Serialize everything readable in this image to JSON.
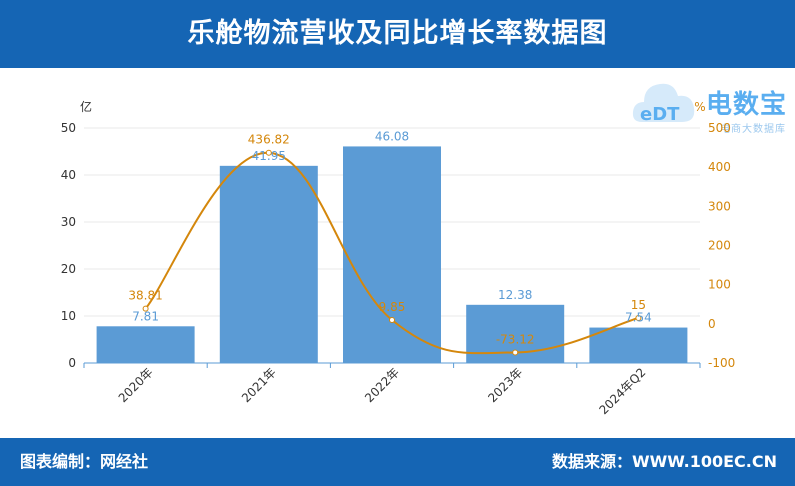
{
  "header": {
    "title": "乐舱物流营收及同比增长率数据图"
  },
  "footer": {
    "left": "图表编制：网经社",
    "right": "数据来源：WWW.100EC.CN"
  },
  "logo": {
    "text": "电数宝",
    "sub": "电商大数据库",
    "mark_text": "eDT"
  },
  "colors": {
    "bar": "#5b9bd5",
    "line": "#d4870c",
    "header_bg": "#1565b4"
  },
  "chart_data": {
    "type": "bar",
    "categories": [
      "2020年",
      "2021年",
      "2022年",
      "2023年",
      "2024年Q2"
    ],
    "y_left": {
      "unit": "亿",
      "ticks": [
        0,
        10,
        20,
        30,
        40,
        50
      ],
      "ylim": [
        0,
        50
      ]
    },
    "y_right": {
      "unit": "%",
      "ticks": [
        -100,
        0,
        100,
        200,
        300,
        400,
        500
      ],
      "ylim": [
        -100,
        500
      ]
    },
    "series": [
      {
        "type": "bar",
        "axis": "left",
        "values": [
          7.81,
          41.95,
          46.08,
          12.38,
          7.54
        ],
        "labels": [
          "7.81",
          "41.95",
          "46.08",
          "12.38",
          "7.54"
        ]
      },
      {
        "type": "line",
        "axis": "right",
        "values": [
          38.81,
          436.82,
          9.85,
          -73.12,
          15
        ],
        "labels": [
          "38.81",
          "436.82",
          "9.85",
          "-73.12",
          "15"
        ]
      }
    ],
    "grid": true,
    "legend": "none"
  }
}
